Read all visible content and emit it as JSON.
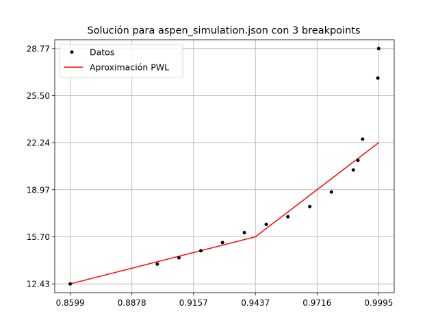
{
  "chart_data": {
    "type": "line",
    "title": "Solución para aspen_simulation.json con 3 breakpoints",
    "xlabel": "",
    "ylabel": "",
    "xlim": [
      0.8529,
      1.0065
    ],
    "ylim": [
      11.82,
      29.38
    ],
    "xticks": [
      0.8599,
      0.8878,
      0.9157,
      0.9437,
      0.9716,
      0.9995
    ],
    "xtick_labels": [
      "0.8599",
      "0.8878",
      "0.9157",
      "0.9437",
      "0.9716",
      "0.9995"
    ],
    "yticks": [
      12.43,
      15.7,
      18.97,
      22.24,
      25.5,
      28.77
    ],
    "ytick_labels": [
      "12.43",
      "15.70",
      "18.97",
      "22.24",
      "25.50",
      "28.77"
    ],
    "grid": true,
    "legend_position": "upper-left",
    "series": [
      {
        "name": "Datos",
        "kind": "scatter",
        "color": "#000000",
        "x": [
          0.8599,
          0.8993,
          0.9091,
          0.919,
          0.9288,
          0.9387,
          0.9486,
          0.9584,
          0.9683,
          0.9781,
          0.988,
          0.9901,
          0.9922,
          0.9991,
          0.9995
        ],
        "y": [
          12.43,
          13.8,
          14.24,
          14.73,
          15.3,
          15.99,
          16.56,
          17.09,
          17.8,
          18.81,
          20.34,
          21.01,
          22.48,
          26.72,
          28.77
        ]
      },
      {
        "name": "Aproximación PWL",
        "kind": "line",
        "color": "#ff0000",
        "x": [
          0.8599,
          0.9437,
          0.9995
        ],
        "y": [
          12.43,
          15.7,
          22.24
        ]
      }
    ]
  }
}
